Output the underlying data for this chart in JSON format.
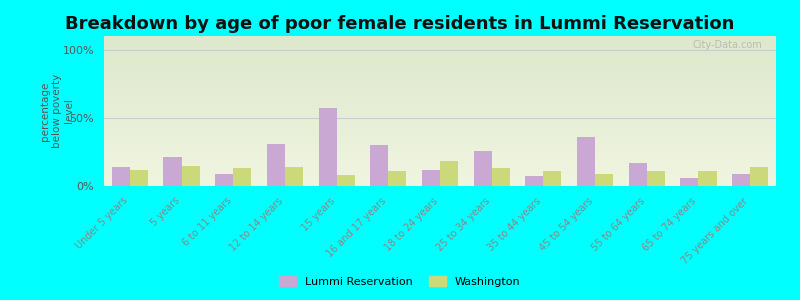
{
  "title": "Breakdown by age of poor female residents in Lummi Reservation",
  "categories": [
    "Under 5 years",
    "5 years",
    "6 to 11 years",
    "12 to 14 years",
    "15 years",
    "16 and 17 years",
    "18 to 24 years",
    "25 to 34 years",
    "35 to 44 years",
    "45 to 54 years",
    "55 to 64 years",
    "65 to 74 years",
    "75 years and over"
  ],
  "lummi_values": [
    14,
    21,
    9,
    31,
    57,
    30,
    12,
    26,
    7,
    36,
    17,
    6,
    9
  ],
  "washington_values": [
    12,
    15,
    13,
    14,
    8,
    11,
    18,
    13,
    11,
    9,
    11,
    11,
    14
  ],
  "lummi_color": "#c9a8d4",
  "washington_color": "#ccd97a",
  "ylabel": "percentage\nbelow poverty\nlevel",
  "yticks": [
    0,
    50,
    100
  ],
  "ytick_labels": [
    "0%",
    "50%",
    "100%"
  ],
  "ylim": [
    0,
    110
  ],
  "background_top": "#dde8cc",
  "background_bottom": "#f0f5e0",
  "outer_bg": "#00ffff",
  "title_fontsize": 13,
  "legend_labels": [
    "Lummi Reservation",
    "Washington"
  ],
  "watermark": "City-Data.com"
}
